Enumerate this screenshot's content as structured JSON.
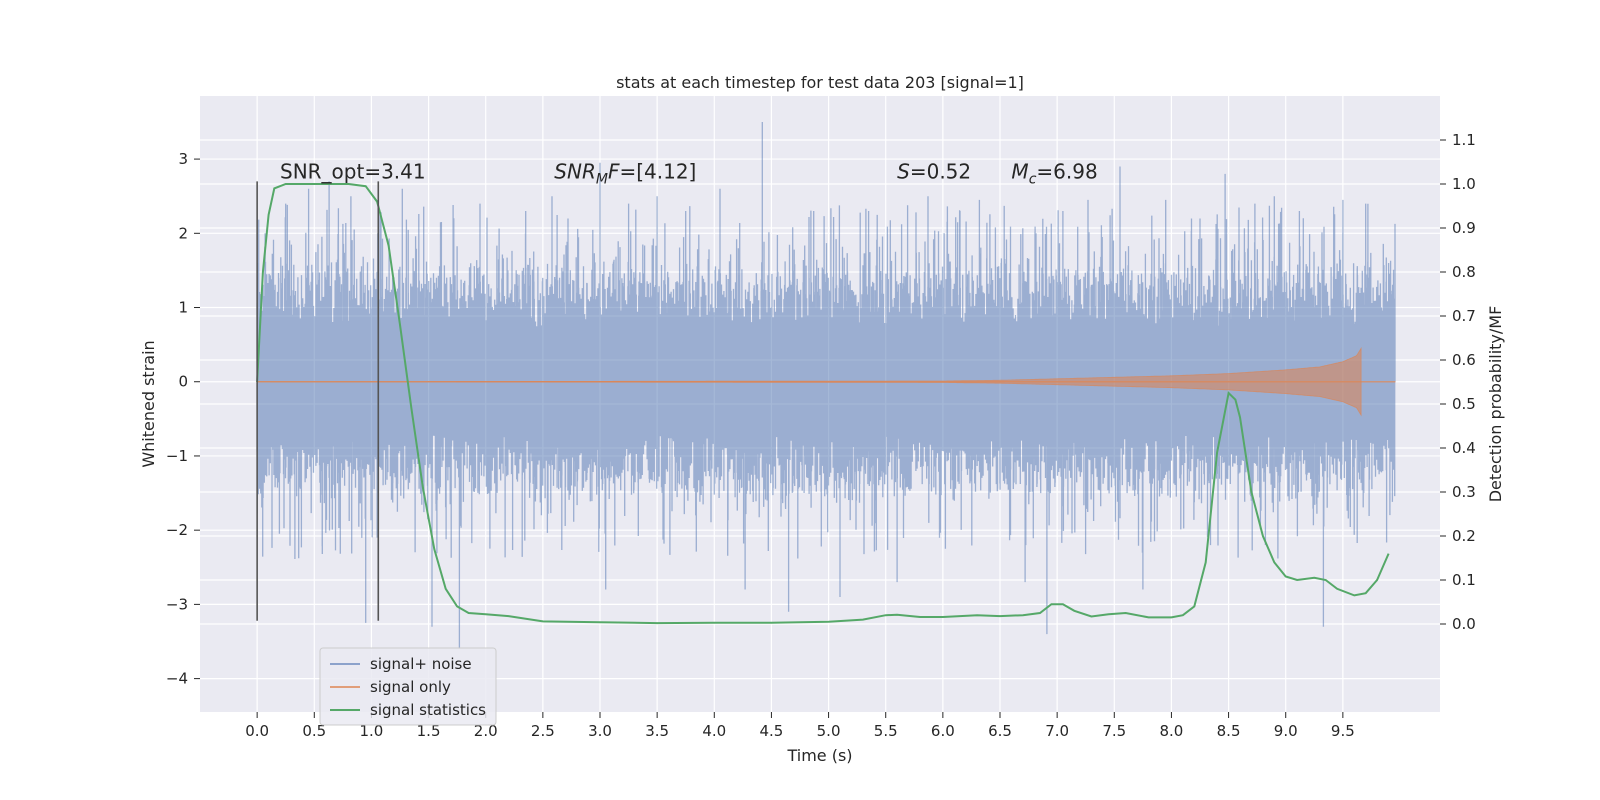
{
  "chart_data": {
    "type": "line",
    "title": "stats at each timestep for test data 203 [signal=1]",
    "xlabel": "Time (s)",
    "ylabel": "Whitened strain",
    "y2label": "Detection probability/MF",
    "xlim": [
      -0.5,
      10.35
    ],
    "ylim": [
      -4.45,
      3.85
    ],
    "y2lim": [
      -0.2,
      1.2
    ],
    "x_ticks": [
      0.0,
      0.5,
      1.0,
      1.5,
      2.0,
      2.5,
      3.0,
      3.5,
      4.0,
      4.5,
      5.0,
      5.5,
      6.0,
      6.5,
      7.0,
      7.5,
      8.0,
      8.5,
      9.0,
      9.5
    ],
    "x_tick_labels": [
      "0.0",
      "0.5",
      "1.0",
      "1.5",
      "2.0",
      "2.5",
      "3.0",
      "3.5",
      "4.0",
      "4.5",
      "5.0",
      "5.5",
      "6.0",
      "6.5",
      "7.0",
      "7.5",
      "8.0",
      "8.5",
      "9.0",
      "9.5"
    ],
    "y_ticks": [
      3,
      2,
      1,
      0,
      -1,
      -2,
      -3,
      -4
    ],
    "y_tick_labels": [
      "3",
      "2",
      "1",
      "0",
      "−1",
      "−2",
      "−3",
      "−4"
    ],
    "y2_ticks": [
      1.1,
      1.0,
      0.9,
      0.8,
      0.7,
      0.6,
      0.5,
      0.4,
      0.3,
      0.2,
      0.1,
      0.0
    ],
    "y2_tick_labels": [
      "1.1",
      "1.0",
      "0.9",
      "0.8",
      "0.7",
      "0.6",
      "0.5",
      "0.4",
      "0.3",
      "0.2",
      "0.1",
      "0.0"
    ],
    "grid": true,
    "legend_position": "lower-left",
    "annotations": [
      {
        "id": "snr-opt",
        "x": 0.2,
        "y": 2.7,
        "parts": [
          {
            "t": "SNR_opt=3.41"
          }
        ]
      },
      {
        "id": "snr-mf",
        "x": 2.6,
        "y": 2.7,
        "parts": [
          {
            "t": "SNR",
            "i": true
          },
          {
            "t": "M",
            "i": true,
            "sub": true
          },
          {
            "t": "F",
            "i": true
          },
          {
            "t": "=[4.12]"
          }
        ]
      },
      {
        "id": "s-value",
        "x": 5.6,
        "y": 2.7,
        "parts": [
          {
            "t": "S",
            "i": true
          },
          {
            "t": "=0.52"
          }
        ]
      },
      {
        "id": "mc-value",
        "x": 6.6,
        "y": 2.7,
        "parts": [
          {
            "t": "M",
            "i": true
          },
          {
            "t": "c",
            "i": true,
            "sub": true
          },
          {
            "t": "=6.98"
          }
        ]
      }
    ],
    "vlines": [
      {
        "x": 0.0,
        "y0": -3.22,
        "y1": 2.7
      },
      {
        "x": 1.06,
        "y0": -3.22,
        "y1": 2.7
      }
    ],
    "series": [
      {
        "name": "signal+ noise",
        "color": "#4c72b0",
        "opacity": 0.5,
        "t_start": 0.0,
        "t_end": 9.96,
        "core_amplitude": 0.95,
        "spike_peaks": [
          [
            0.07,
            2.0
          ],
          [
            0.25,
            2.4
          ],
          [
            0.45,
            2.6
          ],
          [
            0.63,
            2.7
          ],
          [
            0.82,
            2.5
          ],
          [
            0.95,
            -3.25
          ],
          [
            1.05,
            -2.1
          ],
          [
            1.27,
            2.6
          ],
          [
            1.53,
            -3.3
          ],
          [
            1.77,
            -3.6
          ],
          [
            1.95,
            2.4
          ],
          [
            2.35,
            2.3
          ],
          [
            2.58,
            2.5
          ],
          [
            2.72,
            2.2
          ],
          [
            3.0,
            2.95
          ],
          [
            3.05,
            -2.8
          ],
          [
            3.25,
            2.4
          ],
          [
            3.5,
            2.5
          ],
          [
            3.75,
            2.3
          ],
          [
            4.05,
            2.6
          ],
          [
            4.27,
            -2.8
          ],
          [
            4.42,
            3.5
          ],
          [
            4.65,
            -3.1
          ],
          [
            4.87,
            2.3
          ],
          [
            5.1,
            -2.9
          ],
          [
            5.35,
            2.3
          ],
          [
            5.6,
            -2.7
          ],
          [
            5.87,
            2.5
          ],
          [
            6.15,
            2.3
          ],
          [
            6.32,
            2.45
          ],
          [
            6.72,
            -2.7
          ],
          [
            6.91,
            -3.4
          ],
          [
            7.05,
            2.3
          ],
          [
            7.27,
            2.45
          ],
          [
            7.55,
            2.9
          ],
          [
            7.75,
            -2.8
          ],
          [
            7.95,
            2.45
          ],
          [
            8.25,
            2.2
          ],
          [
            8.47,
            2.8
          ],
          [
            8.73,
            2.4
          ],
          [
            8.9,
            2.5
          ],
          [
            9.12,
            2.3
          ],
          [
            9.33,
            -3.3
          ],
          [
            9.5,
            2.45
          ],
          [
            9.7,
            2.4
          ],
          [
            9.9,
            1.6
          ]
        ]
      },
      {
        "name": "signal only",
        "color": "#dd8452",
        "opacity": 0.7,
        "x": [
          0.0,
          6.0,
          6.5,
          7.0,
          7.5,
          8.0,
          8.5,
          9.0,
          9.3,
          9.5,
          9.62,
          9.66
        ],
        "envelope": [
          0.0,
          0.01,
          0.02,
          0.04,
          0.06,
          0.08,
          0.11,
          0.16,
          0.2,
          0.27,
          0.35,
          0.45
        ],
        "x_end": 9.96
      },
      {
        "name": "signal statistics",
        "color": "#55a868",
        "axis": "right",
        "x": [
          0.0,
          0.05,
          0.1,
          0.15,
          0.25,
          0.4,
          0.6,
          0.8,
          0.95,
          1.05,
          1.15,
          1.25,
          1.35,
          1.45,
          1.55,
          1.65,
          1.75,
          1.85,
          2.0,
          2.2,
          2.5,
          3.0,
          3.5,
          4.0,
          4.5,
          5.0,
          5.3,
          5.5,
          5.6,
          5.8,
          6.0,
          6.3,
          6.5,
          6.7,
          6.85,
          6.95,
          7.05,
          7.15,
          7.3,
          7.45,
          7.6,
          7.8,
          8.0,
          8.1,
          8.2,
          8.3,
          8.4,
          8.5,
          8.56,
          8.6,
          8.7,
          8.8,
          8.9,
          9.0,
          9.1,
          9.25,
          9.35,
          9.45,
          9.6,
          9.7,
          9.8,
          9.9
        ],
        "y": [
          0.55,
          0.8,
          0.93,
          0.99,
          1.0,
          1.0,
          1.0,
          1.0,
          0.995,
          0.96,
          0.86,
          0.68,
          0.49,
          0.31,
          0.17,
          0.08,
          0.04,
          0.025,
          0.022,
          0.018,
          0.006,
          0.004,
          0.002,
          0.003,
          0.003,
          0.005,
          0.01,
          0.02,
          0.021,
          0.016,
          0.016,
          0.02,
          0.018,
          0.02,
          0.025,
          0.045,
          0.045,
          0.03,
          0.017,
          0.022,
          0.025,
          0.015,
          0.015,
          0.02,
          0.04,
          0.14,
          0.39,
          0.525,
          0.51,
          0.47,
          0.3,
          0.2,
          0.14,
          0.108,
          0.1,
          0.105,
          0.1,
          0.08,
          0.065,
          0.07,
          0.1,
          0.16
        ]
      }
    ]
  }
}
